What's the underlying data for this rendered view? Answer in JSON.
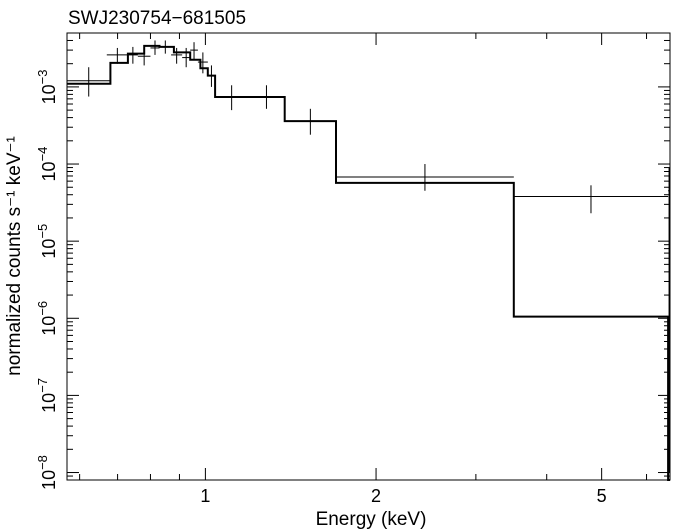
{
  "chart_data": {
    "type": "line",
    "title": "SWJ230754−681505",
    "xlabel": "Energy (keV)",
    "ylabel": "normalized counts s⁻¹ keV⁻¹",
    "x_scale": "log",
    "y_scale": "log",
    "xlim": [
      0.57,
      6.6
    ],
    "ylim": [
      8e-09,
      0.005
    ],
    "grid": false,
    "x_ticks": [
      {
        "value": 1,
        "label": "1"
      },
      {
        "value": 2,
        "label": "2"
      },
      {
        "value": 5,
        "label": "5"
      }
    ],
    "y_ticks": [
      {
        "value": 1e-08,
        "base": "10",
        "exp": "−8"
      },
      {
        "value": 1e-07,
        "base": "10",
        "exp": "−7"
      },
      {
        "value": 1e-06,
        "base": "10",
        "exp": "−6"
      },
      {
        "value": 1e-05,
        "base": "10",
        "exp": "−5"
      },
      {
        "value": 0.0001,
        "base": "10",
        "exp": "−4"
      },
      {
        "value": 0.001,
        "base": "10",
        "exp": "−3"
      }
    ],
    "series": [
      {
        "kind": "data",
        "points": [
          {
            "xlo": 0.57,
            "xhi": 0.68,
            "y": 0.0012,
            "ylo": 0.00075,
            "yhi": 0.0018
          },
          {
            "xlo": 0.67,
            "xhi": 0.73,
            "y": 0.0026,
            "ylo": 0.002,
            "yhi": 0.0032
          },
          {
            "xlo": 0.73,
            "xhi": 0.76,
            "y": 0.0026,
            "ylo": 0.002,
            "yhi": 0.0033
          },
          {
            "xlo": 0.76,
            "xhi": 0.8,
            "y": 0.0025,
            "ylo": 0.0019,
            "yhi": 0.0032
          },
          {
            "xlo": 0.8,
            "xhi": 0.83,
            "y": 0.0032,
            "ylo": 0.0026,
            "yhi": 0.004
          },
          {
            "xlo": 0.83,
            "xhi": 0.87,
            "y": 0.0033,
            "ylo": 0.0027,
            "yhi": 0.004
          },
          {
            "xlo": 0.87,
            "xhi": 0.91,
            "y": 0.0026,
            "ylo": 0.002,
            "yhi": 0.0032
          },
          {
            "xlo": 0.91,
            "xhi": 0.94,
            "y": 0.0024,
            "ylo": 0.0018,
            "yhi": 0.0032
          },
          {
            "xlo": 0.94,
            "xhi": 0.97,
            "y": 0.003,
            "ylo": 0.0023,
            "yhi": 0.0038
          },
          {
            "xlo": 0.97,
            "xhi": 1.01,
            "y": 0.0021,
            "ylo": 0.0015,
            "yhi": 0.0028
          },
          {
            "xlo": 1.01,
            "xhi": 1.04,
            "y": 0.0014,
            "ylo": 0.001,
            "yhi": 0.0019
          },
          {
            "xlo": 1.04,
            "xhi": 1.19,
            "y": 0.00075,
            "ylo": 0.0005,
            "yhi": 0.00105
          },
          {
            "xlo": 1.19,
            "xhi": 1.38,
            "y": 0.00075,
            "ylo": 0.00052,
            "yhi": 0.00105
          },
          {
            "xlo": 1.38,
            "xhi": 1.7,
            "y": 0.00036,
            "ylo": 0.00024,
            "yhi": 0.00052
          },
          {
            "xlo": 1.7,
            "xhi": 3.5,
            "y": 6.8e-05,
            "ylo": 4.5e-05,
            "yhi": 0.0001
          },
          {
            "xlo": 3.5,
            "xhi": 6.55,
            "y": 3.8e-05,
            "ylo": 2.3e-05,
            "yhi": 5.3e-05
          },
          {
            "xlo": 6.55,
            "xhi": 6.6,
            "y": 4.5e-05,
            "ylo": 1e-08,
            "yhi": 9e-05
          }
        ]
      },
      {
        "kind": "model",
        "steps": [
          {
            "x0": 0.57,
            "x1": 0.68,
            "y": 0.0011
          },
          {
            "x0": 0.68,
            "x1": 0.73,
            "y": 0.00205
          },
          {
            "x0": 0.73,
            "x1": 0.78,
            "y": 0.0027
          },
          {
            "x0": 0.78,
            "x1": 0.83,
            "y": 0.0034
          },
          {
            "x0": 0.83,
            "x1": 0.88,
            "y": 0.0033
          },
          {
            "x0": 0.88,
            "x1": 0.94,
            "y": 0.0028
          },
          {
            "x0": 0.94,
            "x1": 0.98,
            "y": 0.00225
          },
          {
            "x0": 0.98,
            "x1": 1.01,
            "y": 0.00175
          },
          {
            "x0": 1.01,
            "x1": 1.04,
            "y": 0.0014
          },
          {
            "x0": 1.04,
            "x1": 1.38,
            "y": 0.00074
          },
          {
            "x0": 1.38,
            "x1": 1.7,
            "y": 0.00036
          },
          {
            "x0": 1.7,
            "x1": 3.5,
            "y": 5.7e-05
          },
          {
            "x0": 3.5,
            "x1": 6.55,
            "y": 1.05e-06
          },
          {
            "x0": 6.55,
            "x1": 6.6,
            "y": 8e-09
          }
        ]
      }
    ]
  }
}
